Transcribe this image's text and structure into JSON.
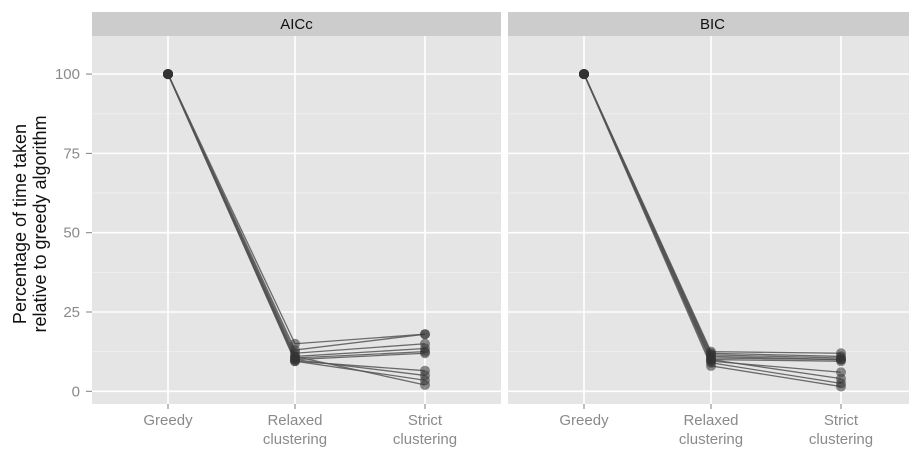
{
  "chart_data": {
    "type": "line",
    "ylabel_lines": [
      "Percentage of time taken",
      "relative to greedy algorithm"
    ],
    "xlabel": "",
    "categories": [
      [
        "Greedy"
      ],
      [
        "Relaxed",
        "clustering"
      ],
      [
        "Strict",
        "clustering"
      ]
    ],
    "ylim": [
      -4,
      112
    ],
    "yticks": [
      0,
      25,
      50,
      75,
      100
    ],
    "grid": true,
    "colors": {
      "panel_bg": "#e5e5e5",
      "strip_bg": "#cccccc",
      "grid_major": "#ffffff",
      "line": "#555555",
      "point": "#333333"
    },
    "panels": [
      {
        "title": "AICc",
        "series": [
          {
            "values": [
              100,
              15,
              18
            ]
          },
          {
            "values": [
              100,
              13,
              18
            ]
          },
          {
            "values": [
              100,
              12,
              15
            ]
          },
          {
            "values": [
              100,
              11,
              13.5
            ]
          },
          {
            "values": [
              100,
              10.5,
              12.5
            ]
          },
          {
            "values": [
              100,
              10,
              12
            ]
          },
          {
            "values": [
              100,
              9.5,
              6.5
            ]
          },
          {
            "values": [
              100,
              10,
              5
            ]
          },
          {
            "values": [
              100,
              9.5,
              3.5
            ]
          },
          {
            "values": [
              100,
              11,
              2
            ]
          }
        ]
      },
      {
        "title": "BIC",
        "series": [
          {
            "values": [
              100,
              12.5,
              12
            ]
          },
          {
            "values": [
              100,
              12,
              11
            ]
          },
          {
            "values": [
              100,
              11.5,
              10.5
            ]
          },
          {
            "values": [
              100,
              11,
              10
            ]
          },
          {
            "values": [
              100,
              10.5,
              10
            ]
          },
          {
            "values": [
              100,
              10,
              9.5
            ]
          },
          {
            "values": [
              100,
              9.5,
              6
            ]
          },
          {
            "values": [
              100,
              10,
              4
            ]
          },
          {
            "values": [
              100,
              9,
              2.5
            ]
          },
          {
            "values": [
              100,
              8,
              1.5
            ]
          }
        ]
      }
    ]
  }
}
